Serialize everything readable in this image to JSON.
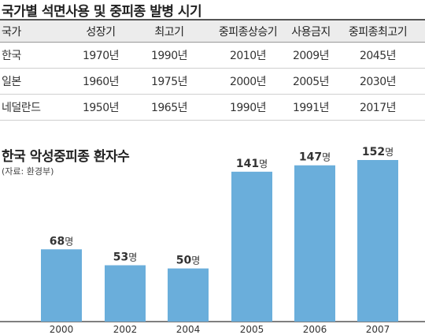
{
  "table": {
    "title": "국가별 석면사용 및 중피종 발병 시기",
    "headers": [
      "국가",
      "성장기",
      "최고기",
      "중피종상승기",
      "사용금지",
      "중피종최고기"
    ],
    "rows": [
      [
        "한국",
        "1970년",
        "1990년",
        "2010년",
        "2009년",
        "2045년"
      ],
      [
        "일본",
        "1960년",
        "1975년",
        "2000년",
        "2005년",
        "2030년"
      ],
      [
        "네덜란드",
        "1950년",
        "1965년",
        "1990년",
        "1991년",
        "2017년"
      ]
    ]
  },
  "chart_data": {
    "type": "bar",
    "title": "한국 악성중피종 환자수",
    "subtitle": "(자료: 환경부)",
    "categories": [
      "2000",
      "2002",
      "2004",
      "2005",
      "2006",
      "2007"
    ],
    "values": [
      68,
      53,
      50,
      141,
      147,
      152
    ],
    "value_labels": [
      {
        "number": "68",
        "unit": "명"
      },
      {
        "number": "53",
        "unit": "명"
      },
      {
        "number": "50",
        "unit": "명"
      },
      {
        "number": "141",
        "unit": "명"
      },
      {
        "number": "147",
        "unit": "명"
      },
      {
        "number": "152",
        "unit": "명"
      }
    ],
    "ylim": [
      0,
      152
    ],
    "bar_color": "#6aaedb",
    "label_color": "#333333",
    "grid": false
  }
}
